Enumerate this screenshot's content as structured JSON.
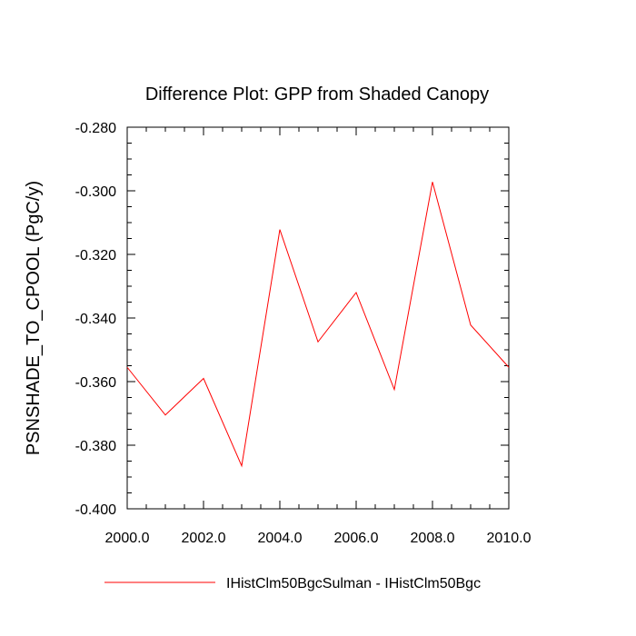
{
  "chart_data": {
    "type": "line",
    "title": "Difference Plot: GPP from Shaded Canopy",
    "ylabel": "PSNSHADE_TO_CPOOL  (PgC/y)",
    "xlabel": "",
    "xlim": [
      2000.0,
      2010.0
    ],
    "ylim": [
      -0.4,
      -0.28
    ],
    "xticks": [
      2000.0,
      2002.0,
      2004.0,
      2006.0,
      2008.0,
      2010.0
    ],
    "xtick_labels": [
      "2000.0",
      "2002.0",
      "2004.0",
      "2006.0",
      "2008.0",
      "2010.0"
    ],
    "yticks": [
      -0.4,
      -0.38,
      -0.36,
      -0.34,
      -0.32,
      -0.3,
      -0.28
    ],
    "ytick_labels": [
      "-0.400",
      "-0.380",
      "-0.360",
      "-0.340",
      "-0.320",
      "-0.300",
      "-0.280"
    ],
    "grid": false,
    "legend_position": "bottom",
    "x": [
      2000,
      2001,
      2002,
      2003,
      2004,
      2005,
      2006,
      2007,
      2008,
      2009,
      2010
    ],
    "series": [
      {
        "name": "IHistClm50BgcSulman - IHistClm50Bgc",
        "color": "#ff0000",
        "values": [
          -0.3555,
          -0.3705,
          -0.359,
          -0.3865,
          -0.3122,
          -0.3475,
          -0.332,
          -0.3625,
          -0.2972,
          -0.3422,
          -0.3555
        ]
      }
    ]
  }
}
